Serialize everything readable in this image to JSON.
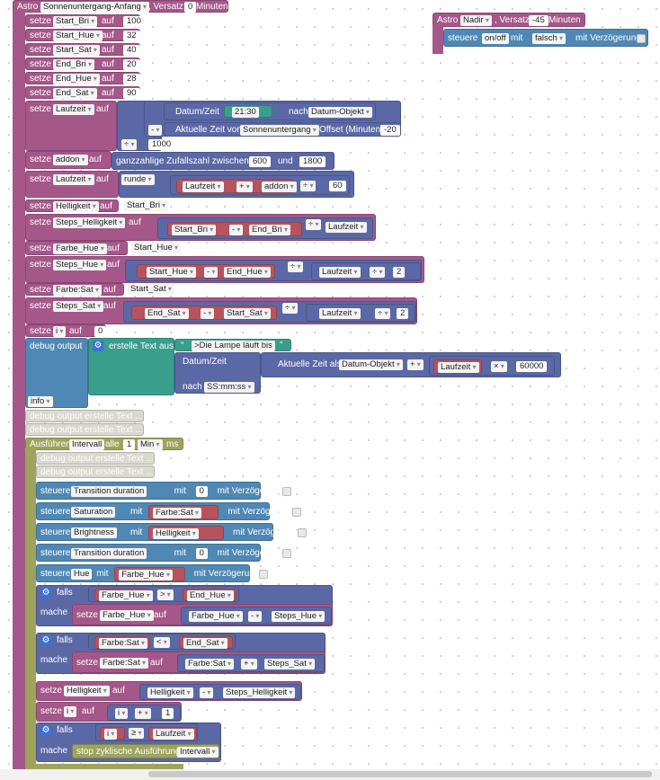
{
  "astro": {
    "label": "Astro",
    "event": "Sonnenuntergang-Anfang",
    "offset_label": ", Versatz",
    "offset_value": "0",
    "unit": "Minuten"
  },
  "astro2": {
    "label": "Astro",
    "event": "Nadir",
    "offset_label": ", Versatz",
    "offset_value": "-45",
    "unit": "Minuten",
    "control_label": "steuere",
    "control_target": "on/off",
    "with_label": "mit",
    "value": "falsch",
    "delay_label": "mit Verzögerung"
  },
  "kw": {
    "setze": "setze",
    "auf": "auf",
    "steuere": "steuere",
    "mit": "mit",
    "mit_verz": "mit Verzögerung",
    "falls": "falls",
    "mache": "mache",
    "nach": "nach",
    "runde": "runde",
    "und": "und"
  },
  "sets": [
    {
      "var": "Start_Bri",
      "val": "100"
    },
    {
      "var": "Start_Hue",
      "val": "32"
    },
    {
      "var": "Start_Sat",
      "val": "40"
    },
    {
      "var": "End_Bri",
      "val": "20"
    },
    {
      "var": "End_Hue",
      "val": "28"
    },
    {
      "var": "End_Sat",
      "val": "90"
    }
  ],
  "laufzeit": {
    "var": "Laufzeit",
    "datum_zeit": "Datum/Zeit",
    "time": "21:30",
    "nach": "nach",
    "format": "Datum-Objekt",
    "minus": "-",
    "aktuelle": "Aktuelle Zeit von",
    "event": "Sonnenuntergang",
    "offset": "Offset (Minuten)",
    "offset_val": "-20",
    "div": "÷",
    "divisor": "1000"
  },
  "addon": {
    "var": "addon",
    "text": "ganzzahlige Zufallszahl zwischen",
    "min": "600",
    "und": "und",
    "max": "1800"
  },
  "laufzeit2": {
    "var": "Laufzeit",
    "runde": "runde",
    "a": "Laufzeit",
    "plus": "+",
    "b": "addon",
    "div": "÷",
    "divisor": "60"
  },
  "helligkeit": {
    "var": "Helligkeit",
    "val": "Start_Bri"
  },
  "steps_hell": {
    "var": "Steps_Helligkeit",
    "a": "Start_Bri",
    "op": "-",
    "b": "End_Bri",
    "div": "÷",
    "c": "Laufzeit"
  },
  "farbe_hue": {
    "var": "Farbe_Hue",
    "val": "Start_Hue"
  },
  "steps_hue": {
    "var": "Steps_Hue",
    "a": "Start_Hue",
    "op": "-",
    "b": "End_Hue",
    "div": "÷",
    "c": "Laufzeit",
    "div2": "÷",
    "n": "2"
  },
  "farbe_sat": {
    "var": "Farbe:Sat",
    "val": "Start_Sat"
  },
  "steps_sat": {
    "var": "Steps_Sat",
    "a": "End_Sat",
    "op": "-",
    "b": "Start_Sat",
    "div": "÷",
    "c": "Laufzeit",
    "div2": "÷",
    "n": "2"
  },
  "set_i": {
    "var": "i",
    "val": "0"
  },
  "debug": {
    "label": "debug output",
    "create": "erstelle Text aus",
    "text": ">Die Lampe läuft bis",
    "datum_zeit": "Datum/Zeit",
    "aktuelle": "Aktuelle Zeit als",
    "format": "Datum-Objekt",
    "plus": "+",
    "var": "Laufzeit",
    "times": "×",
    "mult": "60000",
    "nach": "nach",
    "fmt": "SS:mm:ss",
    "level": "info"
  },
  "ghost_debug": "debug output erstelle Text ...",
  "interval": {
    "label": "Ausführen",
    "name": "Intervall",
    "alle": "alle",
    "value": "1",
    "unit": "Min",
    "ms": "ms"
  },
  "controls": [
    {
      "target": "Transition duration",
      "value": "0",
      "type": "num"
    },
    {
      "target": "Saturation",
      "value": "Farbe:Sat",
      "type": "var"
    },
    {
      "target": "Brightness",
      "value": "Helligkeit",
      "type": "var"
    },
    {
      "target": "Transition duration",
      "value": "0",
      "type": "num"
    },
    {
      "target": "Hue",
      "value": "Farbe_Hue",
      "type": "var"
    }
  ],
  "if1": {
    "a": "Farbe_Hue",
    "op": ">",
    "b": "End_Hue",
    "set": "Farbe_Hue",
    "x": "Farbe_Hue",
    "minus": "-",
    "y": "Steps_Hue"
  },
  "if2": {
    "a": "Farbe:Sat",
    "op": "<",
    "b": "End_Sat",
    "set": "Farbe:Sat",
    "x": "Farbe:Sat",
    "plus": "+",
    "y": "Steps_Sat"
  },
  "set_hell": {
    "var": "Helligkeit",
    "a": "Helligkeit",
    "op": "-",
    "b": "Steps_Helligkeit"
  },
  "set_i2": {
    "var": "i",
    "a": "i",
    "op": "+",
    "n": "1"
  },
  "if3": {
    "a": "i",
    "op": "≥",
    "b": "Laufzeit",
    "stop": "stop zyklische Ausführung",
    "name": "Intervall"
  }
}
